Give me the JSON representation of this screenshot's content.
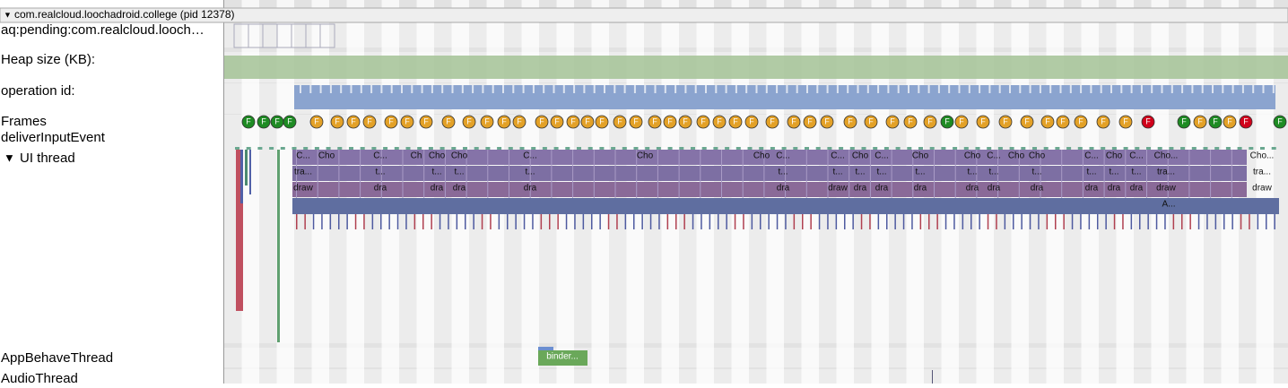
{
  "process": {
    "title": "com.realcloud.loochadroid.college (pid 12378)",
    "toggle": "▼"
  },
  "tracks": {
    "pending": "aq:pending:com.realcloud.looch…",
    "heap": "Heap size (KB):",
    "operation": "operation id:",
    "frames": "Frames",
    "input": "deliverInputEvent",
    "ui_toggle": "▼",
    "ui": "UI thread",
    "behave": "AppBehaveThread",
    "audio": "AudioThread"
  },
  "frames": {
    "label": "F",
    "colors": [
      "#1e8b23",
      "#1e8b23",
      "#1e8b23",
      "#1e8b23",
      "#e3a127",
      "#e3a127",
      "#e3a127",
      "#e3a127",
      "#e3a127",
      "#e3a127",
      "#e3a127",
      "#e3a127",
      "#e3a127",
      "#e3a127",
      "#e3a127",
      "#e3a127",
      "#e3a127",
      "#e3a127",
      "#e3a127",
      "#e3a127",
      "#e3a127",
      "#e3a127",
      "#e3a127",
      "#e3a127",
      "#e3a127",
      "#e3a127",
      "#e3a127",
      "#e3a127",
      "#e3a127",
      "#e3a127",
      "#e3a127",
      "#e3a127",
      "#e3a127",
      "#e3a127",
      "#e3a127",
      "#e3a127",
      "#e3a127",
      "#e3a127",
      "#e3a127",
      "#1e8b23",
      "#e3a127",
      "#e3a127",
      "#e3a127",
      "#e3a127",
      "#e3a127",
      "#e3a127",
      "#e3a127",
      "#e3a127",
      "#e3a127",
      "#d0021b",
      "#1e8b23",
      "#e3a127",
      "#1e8b23",
      "#e3a127",
      "#d0021b",
      "#1e8b23"
    ]
  },
  "ui_thread": {
    "rows": [
      [
        "C...",
        "Cho",
        "C...",
        "Ch",
        "Cho",
        "Cho",
        "C...",
        "Cho",
        "Cho",
        "C...",
        "C...",
        "Cho",
        "C...",
        "Cho",
        "Cho",
        "C...",
        "Cho",
        "Cho",
        "C...",
        "Cho",
        "C...",
        "Cho...",
        "Cho..."
      ],
      [
        "tra...",
        "t...",
        "t...",
        "t...",
        "t...",
        "t...",
        "t...",
        "t...",
        "t...",
        "t...",
        "t...",
        "t...",
        "t...",
        "t...",
        "t...",
        "t...",
        "tra...",
        "tra..."
      ],
      [
        "draw",
        "dra",
        "dra",
        "dra",
        "dra",
        "dra",
        "draw",
        "dra",
        "dra",
        "dra",
        "dra",
        "dra",
        "dra",
        "dra",
        "dra",
        "dra",
        "draw",
        "draw"
      ],
      [
        "A..."
      ]
    ]
  },
  "behave_slice": "binder..."
}
